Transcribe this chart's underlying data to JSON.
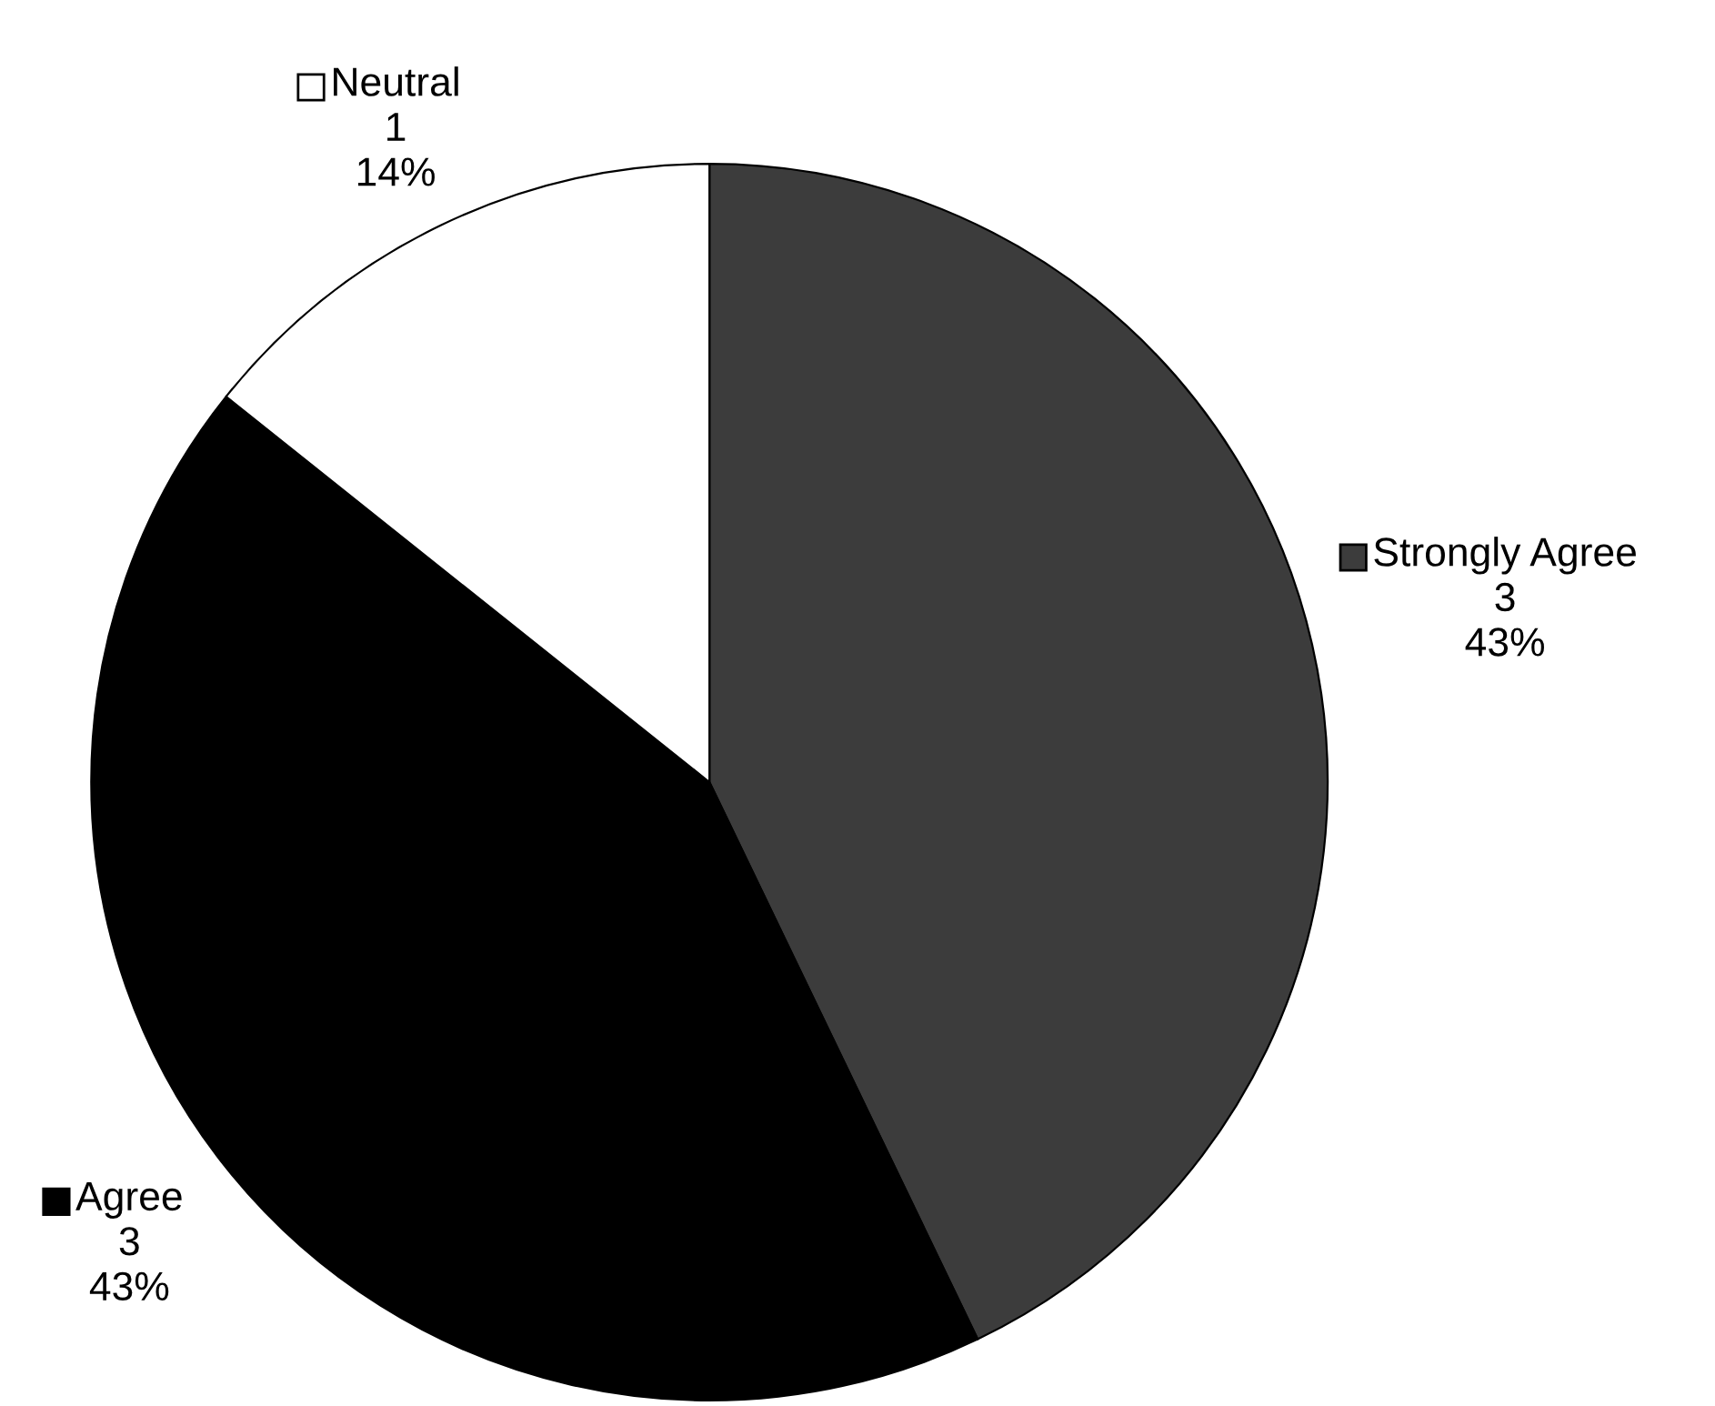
{
  "chart_data": {
    "type": "pie",
    "categories": [
      "Strongly Agree",
      "Agree",
      "Neutral"
    ],
    "values": [
      3,
      3,
      1
    ],
    "colors": [
      "#3c3c3c",
      "#000000",
      "#ffffff"
    ],
    "value_labels": [
      "3\n43%",
      "3\n43%",
      "1\n14%"
    ],
    "legend": "right"
  }
}
